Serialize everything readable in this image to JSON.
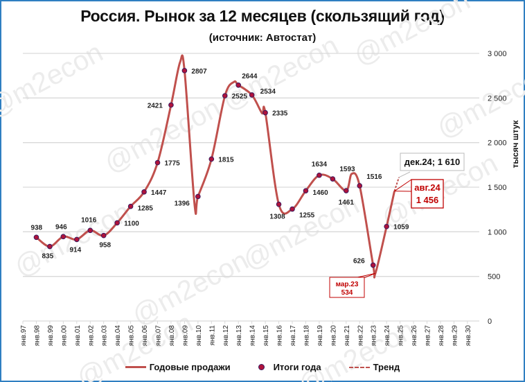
{
  "title": "Россия. Рынок за 12 месяцев (скользящий год)",
  "subtitle": "(источник: Автостат)",
  "watermark": "@m2econ",
  "colors": {
    "line": "#c0504d",
    "marker": "#b0123b",
    "marker_edge": "#3a1a5e",
    "grid": "#d9d9d9",
    "frame": "#2f7fc1",
    "callout_red": "#c00000"
  },
  "legend": {
    "annual_sales": "Годовые продажи",
    "year_totals": "Итоги года",
    "trend": "Тренд"
  },
  "callouts": {
    "min": {
      "line1": "мар.23",
      "line2": "534"
    },
    "latest": {
      "line1": "авг.24",
      "line2": "1 456"
    },
    "forecast": {
      "label": "дек.24; 1 610"
    }
  },
  "chart_data": {
    "type": "line",
    "title": "Россия. Рынок за 12 месяцев (скользящий год)",
    "subtitle": "(источник: Автостат)",
    "xlabel": "",
    "ylabel": "тысяч штук",
    "ylim": [
      0,
      3000
    ],
    "yticks": [
      "0",
      "500",
      "1 000",
      "1 500",
      "2 000",
      "2 500",
      "3 000"
    ],
    "y_axis_position": "right",
    "grid": true,
    "legend_position": "bottom",
    "categories": [
      "янв.97",
      "янв.98",
      "янв.99",
      "янв.00",
      "янв.01",
      "янв.02",
      "янв.03",
      "янв.04",
      "янв.05",
      "янв.06",
      "янв.07",
      "янв.08",
      "янв.09",
      "янв.10",
      "янв.11",
      "янв.12",
      "янв.13",
      "янв.14",
      "янв.15",
      "янв.16",
      "янв.17",
      "янв.18",
      "янв.19",
      "янв.20",
      "янв.21",
      "янв.22",
      "янв.23",
      "янв.24",
      "янв.25",
      "янв.26",
      "янв.27",
      "янв.28",
      "янв.29",
      "янв.30"
    ],
    "series": [
      {
        "name": "Итоги года",
        "type": "scatter",
        "x": [
          "янв.98",
          "янв.99",
          "янв.00",
          "янв.01",
          "янв.02",
          "янв.03",
          "янв.04",
          "янв.05",
          "янв.06",
          "янв.07",
          "янв.08",
          "янв.09",
          "янв.10",
          "янв.11",
          "янв.12",
          "янв.13",
          "янв.14",
          "янв.15",
          "янв.16",
          "янв.17",
          "янв.18",
          "янв.19",
          "янв.20",
          "янв.21",
          "янв.22",
          "янв.23",
          "янв.24"
        ],
        "values": [
          938,
          835,
          946,
          914,
          1016,
          958,
          1100,
          1285,
          1447,
          1775,
          2421,
          2807,
          1396,
          1815,
          2525,
          2644,
          2534,
          2335,
          1308,
          1255,
          1460,
          1634,
          1593,
          1461,
          1516,
          626,
          1059
        ]
      },
      {
        "name": "Годовые продажи",
        "type": "line",
        "notes": "rolling 12-month sales, monthly; minimum мар.23 = 534, last point авг.24 = 1456",
        "points": [
          {
            "x": "янв.98",
            "y": 938
          },
          {
            "x": "янв.99",
            "y": 835
          },
          {
            "x": "янв.00",
            "y": 946
          },
          {
            "x": "янв.01",
            "y": 914
          },
          {
            "x": "янв.02",
            "y": 1016
          },
          {
            "x": "янв.03",
            "y": 958
          },
          {
            "x": "янв.04",
            "y": 1100
          },
          {
            "x": "янв.05",
            "y": 1285
          },
          {
            "x": "янв.06",
            "y": 1447
          },
          {
            "x": "янв.07",
            "y": 1775
          },
          {
            "x": "янв.08",
            "y": 2421
          },
          {
            "x": "сен.08",
            "y": 2900
          },
          {
            "x": "янв.09",
            "y": 2807
          },
          {
            "x": "окт.09",
            "y": 1300
          },
          {
            "x": "янв.10",
            "y": 1396
          },
          {
            "x": "янв.11",
            "y": 1815
          },
          {
            "x": "янв.12",
            "y": 2525
          },
          {
            "x": "сен.12",
            "y": 2680
          },
          {
            "x": "янв.13",
            "y": 2644
          },
          {
            "x": "янв.14",
            "y": 2534
          },
          {
            "x": "окт.14",
            "y": 2330
          },
          {
            "x": "янв.15",
            "y": 2335
          },
          {
            "x": "янв.16",
            "y": 1308
          },
          {
            "x": "янв.17",
            "y": 1255
          },
          {
            "x": "янв.18",
            "y": 1460
          },
          {
            "x": "янв.19",
            "y": 1634
          },
          {
            "x": "янв.20",
            "y": 1593
          },
          {
            "x": "янв.21",
            "y": 1461
          },
          {
            "x": "июн.21",
            "y": 1650
          },
          {
            "x": "янв.22",
            "y": 1516
          },
          {
            "x": "янв.23",
            "y": 626
          },
          {
            "x": "мар.23",
            "y": 534
          },
          {
            "x": "янв.24",
            "y": 1059
          },
          {
            "x": "авг.24",
            "y": 1456
          }
        ]
      },
      {
        "name": "Тренд",
        "type": "line-dashed",
        "points": [
          {
            "x": "авг.24",
            "y": 1456
          },
          {
            "x": "дек.24",
            "y": 1610
          }
        ]
      }
    ],
    "annotations": [
      "мар.23 534",
      "авг.24 1 456",
      "дек.24; 1 610"
    ]
  }
}
